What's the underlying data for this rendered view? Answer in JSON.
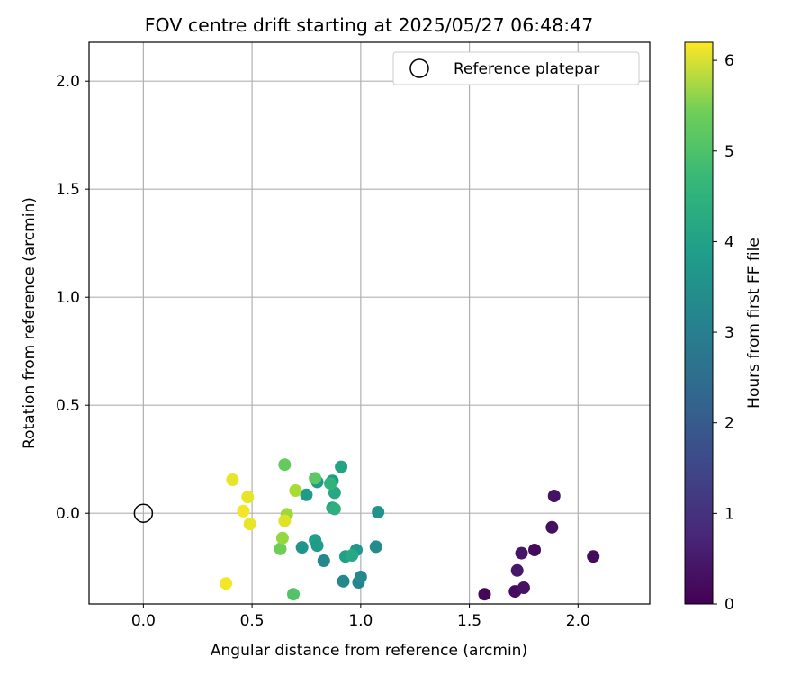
{
  "chart_data": {
    "type": "scatter",
    "title": "FOV centre drift starting at 2025/05/27 06:48:47",
    "xlabel": "Angular distance from reference (arcmin)",
    "ylabel": "Rotation from reference (arcmin)",
    "xlim": [
      -0.25,
      2.33
    ],
    "ylim": [
      -0.42,
      2.18
    ],
    "xticks": [
      0.0,
      0.5,
      1.0,
      1.5,
      2.0
    ],
    "xtick_labels": [
      "0.0",
      "0.5",
      "1.0",
      "1.5",
      "2.0"
    ],
    "yticks": [
      0.0,
      0.5,
      1.0,
      1.5,
      2.0
    ],
    "ytick_labels": [
      "0.0",
      "0.5",
      "1.0",
      "1.5",
      "2.0"
    ],
    "grid": true,
    "legend": {
      "position": "top-right",
      "entries": [
        "Reference platepar"
      ]
    },
    "colorbar": {
      "label": "Hours from first FF file",
      "colormap": "viridis",
      "range": [
        0,
        6.2
      ],
      "ticks": [
        0,
        1,
        2,
        3,
        4,
        5,
        6
      ],
      "tick_labels": [
        "0",
        "1",
        "2",
        "3",
        "4",
        "5",
        "6"
      ]
    },
    "reference": {
      "name": "Reference platepar",
      "x": 0.0,
      "y": 0.0
    },
    "points": [
      {
        "x": 1.57,
        "y": -0.375,
        "hours": 0.1
      },
      {
        "x": 1.71,
        "y": -0.362,
        "hours": 0.2
      },
      {
        "x": 1.75,
        "y": -0.345,
        "hours": 0.3
      },
      {
        "x": 1.72,
        "y": -0.265,
        "hours": 0.4
      },
      {
        "x": 1.74,
        "y": -0.185,
        "hours": 0.35
      },
      {
        "x": 1.8,
        "y": -0.17,
        "hours": 0.15
      },
      {
        "x": 1.88,
        "y": -0.065,
        "hours": 0.25
      },
      {
        "x": 1.89,
        "y": 0.08,
        "hours": 0.3
      },
      {
        "x": 2.07,
        "y": -0.2,
        "hours": 0.2
      },
      {
        "x": 0.99,
        "y": -0.32,
        "hours": 2.8
      },
      {
        "x": 0.92,
        "y": -0.315,
        "hours": 2.9
      },
      {
        "x": 1.0,
        "y": -0.295,
        "hours": 2.9
      },
      {
        "x": 0.83,
        "y": -0.22,
        "hours": 2.9
      },
      {
        "x": 1.07,
        "y": -0.155,
        "hours": 3.0
      },
      {
        "x": 1.08,
        "y": 0.005,
        "hours": 3.2
      },
      {
        "x": 0.73,
        "y": -0.158,
        "hours": 3.2
      },
      {
        "x": 0.79,
        "y": -0.125,
        "hours": 3.5
      },
      {
        "x": 0.8,
        "y": -0.15,
        "hours": 3.4
      },
      {
        "x": 0.98,
        "y": -0.17,
        "hours": 3.3
      },
      {
        "x": 0.93,
        "y": -0.2,
        "hours": 3.5
      },
      {
        "x": 0.96,
        "y": -0.195,
        "hours": 3.7
      },
      {
        "x": 0.75,
        "y": 0.085,
        "hours": 3.4
      },
      {
        "x": 0.8,
        "y": 0.145,
        "hours": 3.3
      },
      {
        "x": 0.87,
        "y": 0.15,
        "hours": 3.4
      },
      {
        "x": 0.91,
        "y": 0.215,
        "hours": 3.6
      },
      {
        "x": 0.88,
        "y": 0.095,
        "hours": 3.7
      },
      {
        "x": 0.87,
        "y": 0.025,
        "hours": 3.6
      },
      {
        "x": 0.88,
        "y": 0.02,
        "hours": 3.9
      },
      {
        "x": 0.86,
        "y": 0.138,
        "hours": 4.0
      },
      {
        "x": 0.79,
        "y": 0.162,
        "hours": 4.6
      },
      {
        "x": 0.65,
        "y": 0.225,
        "hours": 4.7
      },
      {
        "x": 0.63,
        "y": -0.165,
        "hours": 4.8
      },
      {
        "x": 0.69,
        "y": -0.375,
        "hours": 4.5
      },
      {
        "x": 0.64,
        "y": -0.115,
        "hours": 5.2
      },
      {
        "x": 0.7,
        "y": 0.105,
        "hours": 5.4
      },
      {
        "x": 0.66,
        "y": -0.005,
        "hours": 5.3
      },
      {
        "x": 0.65,
        "y": -0.035,
        "hours": 5.9
      },
      {
        "x": 0.41,
        "y": 0.155,
        "hours": 6.0
      },
      {
        "x": 0.48,
        "y": 0.075,
        "hours": 6.0
      },
      {
        "x": 0.46,
        "y": 0.01,
        "hours": 6.1
      },
      {
        "x": 0.49,
        "y": -0.05,
        "hours": 6.0
      },
      {
        "x": 0.38,
        "y": -0.325,
        "hours": 6.1
      }
    ]
  }
}
